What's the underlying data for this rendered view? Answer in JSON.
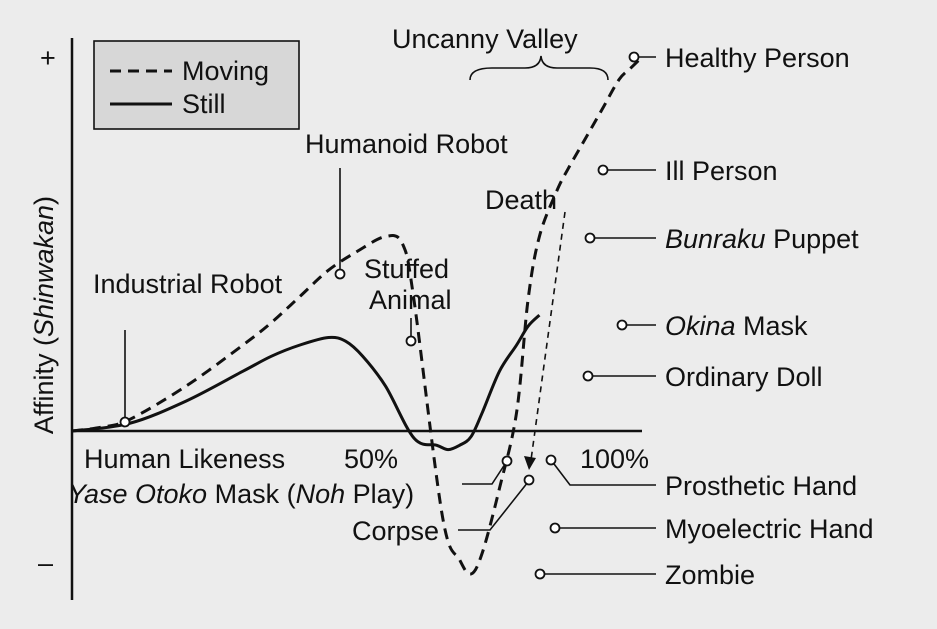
{
  "chart_data": {
    "type": "line",
    "xlabel": "Human Likeness",
    "ylabel": "Affinity (Shinwakan)",
    "ylabel_parts": [
      "Affinity (",
      "Shinwakan",
      ")"
    ],
    "x_ticks": [
      "50%",
      "100%"
    ],
    "y_ticks": [
      "+",
      "–"
    ],
    "xlim": [
      0,
      100
    ],
    "ylim": [
      -1,
      1
    ],
    "legend": {
      "position": "top-left",
      "items": [
        "Moving",
        "Still"
      ]
    },
    "series": [
      {
        "name": "Moving",
        "style": "dashed",
        "x": [
          0,
          5,
          10,
          20,
          30,
          35,
          40,
          45,
          50,
          55,
          58,
          60,
          65,
          68,
          70,
          72,
          75,
          78,
          80,
          82,
          85,
          87,
          90,
          93,
          96,
          98,
          100
        ],
        "y": [
          0,
          0.01,
          0.03,
          0.12,
          0.23,
          0.29,
          0.36,
          0.43,
          0.48,
          0.52,
          0.5,
          0.35,
          -0.6,
          -0.9,
          -1.0,
          -0.85,
          -0.4,
          0.05,
          0.35,
          0.52,
          0.64,
          0.7,
          0.78,
          0.86,
          0.94,
          0.97,
          1.0
        ]
      },
      {
        "name": "Still",
        "style": "solid",
        "x": [
          0,
          10,
          20,
          30,
          35,
          40,
          45,
          48,
          51,
          55,
          60,
          64,
          66,
          68,
          70,
          72,
          75,
          78,
          80,
          82
        ],
        "y": [
          0,
          0.02,
          0.08,
          0.16,
          0.2,
          0.23,
          0.25,
          0.24,
          0.2,
          0.12,
          -0.05,
          -0.1,
          -0.13,
          -0.1,
          -0.04,
          0.05,
          0.16,
          0.23,
          0.28,
          0.31
        ]
      }
    ],
    "annotations": {
      "uncanny_valley": "Uncanny Valley",
      "death": "Death",
      "industrial_robot": "Industrial Robot",
      "humanoid_robot": "Humanoid Robot",
      "stuffed_animal_1": "Stuffed",
      "stuffed_animal_2": "Animal",
      "healthy_person": "Healthy Person",
      "ill_person": "Ill Person",
      "bunraku_puppet_italic": "Bunraku",
      "bunraku_puppet_rest": " Puppet",
      "okina_mask_italic": "Okina",
      "okina_mask_rest": " Mask",
      "ordinary_doll": "Ordinary Doll",
      "prosthetic_hand": "Prosthetic Hand",
      "myoelectric_hand": "Myoelectric Hand",
      "zombie": "Zombie",
      "corpse": "Corpse",
      "yase_italic": "Yase Otoko",
      "yase_mid": " Mask (",
      "yase_noh_italic": "Noh",
      "yase_end": " Play)"
    }
  }
}
